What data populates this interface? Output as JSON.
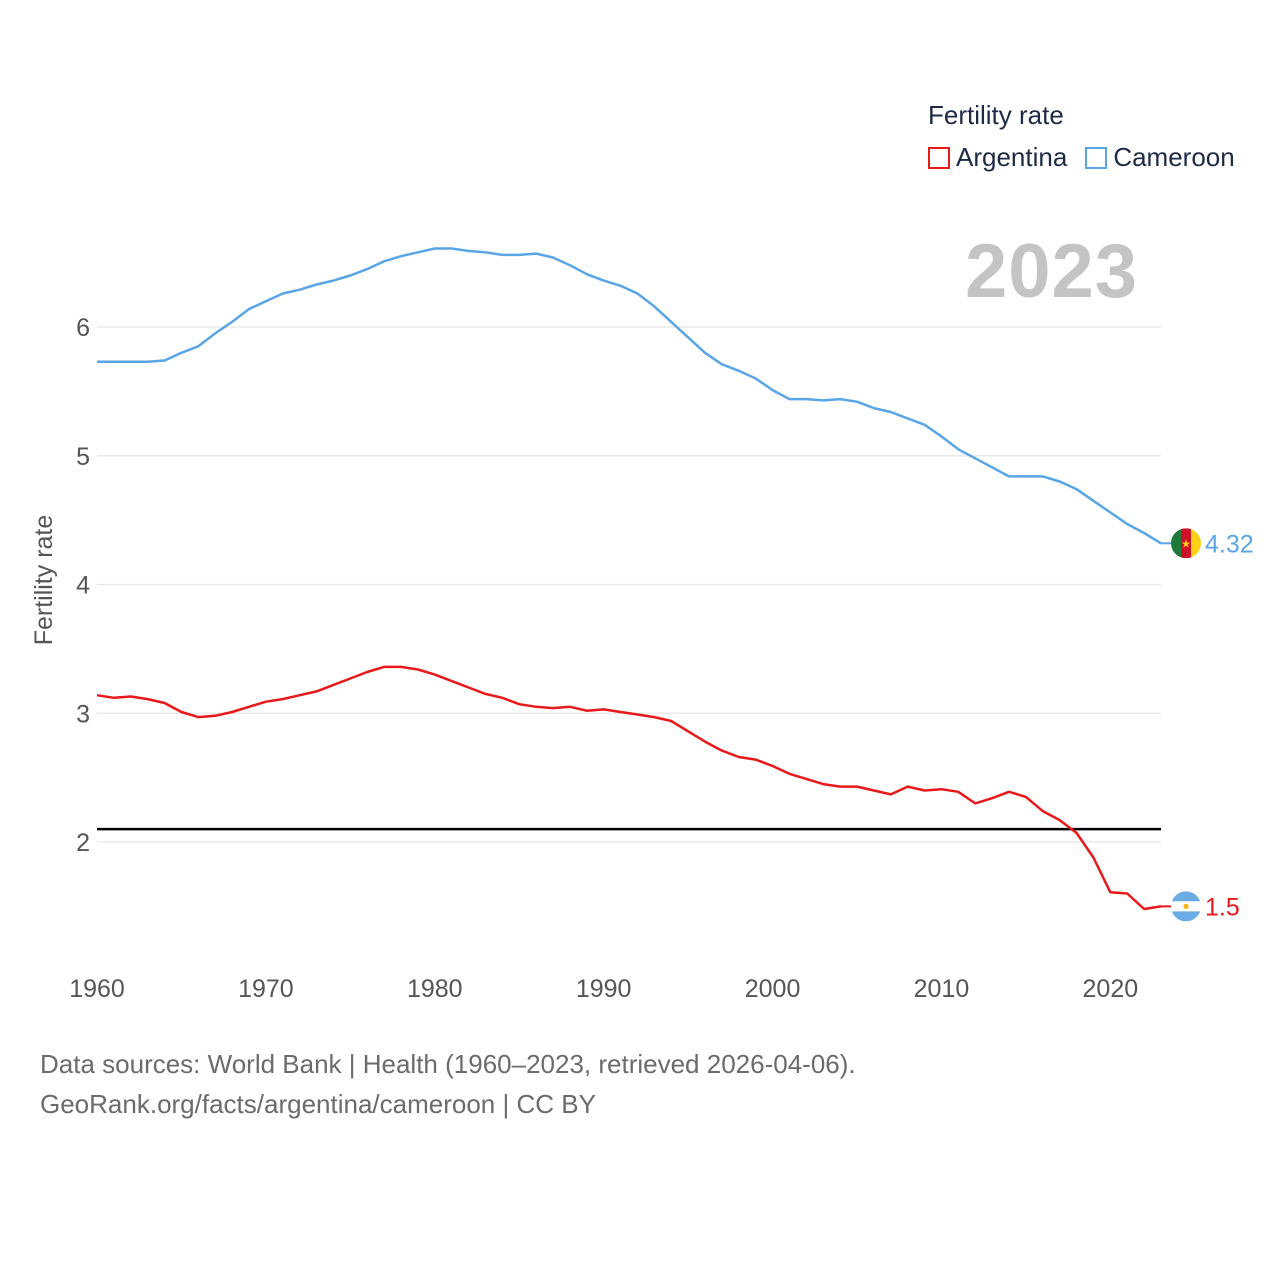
{
  "legend": {
    "title": "Fertility rate",
    "items": [
      {
        "label": "Argentina",
        "color": "#e8191a"
      },
      {
        "label": "Cameroon",
        "color": "#5aa5e6"
      }
    ]
  },
  "year_label": "2023",
  "footer": {
    "line1": "Data sources: World Bank | Health (1960–2023, retrieved 2026-04-06).",
    "line2": "GeoRank.org/facts/argentina/cameroon | CC BY"
  },
  "chart_data": {
    "type": "line",
    "title": "",
    "xlabel": "",
    "ylabel": "Fertility rate",
    "xlim": [
      1960,
      2023
    ],
    "ylim": [
      1.1,
      6.9
    ],
    "x_ticks": [
      1960,
      1970,
      1980,
      1990,
      2000,
      2010,
      2020
    ],
    "y_ticks": [
      2,
      3,
      4,
      5,
      6
    ],
    "reference_line": {
      "y": 2.1,
      "color": "#000000"
    },
    "x": [
      1960,
      1961,
      1962,
      1963,
      1964,
      1965,
      1966,
      1967,
      1968,
      1969,
      1970,
      1971,
      1972,
      1973,
      1974,
      1975,
      1976,
      1977,
      1978,
      1979,
      1980,
      1981,
      1982,
      1983,
      1984,
      1985,
      1986,
      1987,
      1988,
      1989,
      1990,
      1991,
      1992,
      1993,
      1994,
      1995,
      1996,
      1997,
      1998,
      1999,
      2000,
      2001,
      2002,
      2003,
      2004,
      2005,
      2006,
      2007,
      2008,
      2009,
      2010,
      2011,
      2012,
      2013,
      2014,
      2015,
      2016,
      2017,
      2018,
      2019,
      2020,
      2021,
      2022,
      2023
    ],
    "series": [
      {
        "name": "Argentina",
        "color": "#e8191a",
        "end_label": "1.5",
        "values": [
          3.14,
          3.12,
          3.13,
          3.11,
          3.08,
          3.01,
          2.97,
          2.98,
          3.01,
          3.05,
          3.09,
          3.11,
          3.14,
          3.17,
          3.22,
          3.27,
          3.32,
          3.36,
          3.36,
          3.34,
          3.3,
          3.25,
          3.2,
          3.15,
          3.12,
          3.07,
          3.05,
          3.04,
          3.05,
          3.02,
          3.03,
          3.01,
          2.99,
          2.97,
          2.94,
          2.86,
          2.78,
          2.71,
          2.66,
          2.64,
          2.59,
          2.53,
          2.49,
          2.45,
          2.43,
          2.43,
          2.4,
          2.37,
          2.43,
          2.4,
          2.41,
          2.39,
          2.3,
          2.34,
          2.39,
          2.35,
          2.24,
          2.17,
          2.07,
          1.88,
          1.61,
          1.6,
          1.48,
          1.5
        ]
      },
      {
        "name": "Cameroon",
        "color": "#5aa5e6",
        "end_label": "4.32",
        "values": [
          5.73,
          5.73,
          5.73,
          5.73,
          5.74,
          5.8,
          5.85,
          5.95,
          6.04,
          6.14,
          6.2,
          6.26,
          6.29,
          6.33,
          6.36,
          6.4,
          6.45,
          6.51,
          6.55,
          6.58,
          6.61,
          6.61,
          6.59,
          6.58,
          6.56,
          6.56,
          6.57,
          6.54,
          6.48,
          6.41,
          6.36,
          6.32,
          6.26,
          6.16,
          6.04,
          5.92,
          5.8,
          5.71,
          5.66,
          5.6,
          5.51,
          5.44,
          5.44,
          5.43,
          5.44,
          5.42,
          5.37,
          5.34,
          5.29,
          5.24,
          5.15,
          5.05,
          4.98,
          4.91,
          4.84,
          4.84,
          4.84,
          4.8,
          4.74,
          4.65,
          4.56,
          4.47,
          4.4,
          4.32
        ]
      }
    ]
  }
}
